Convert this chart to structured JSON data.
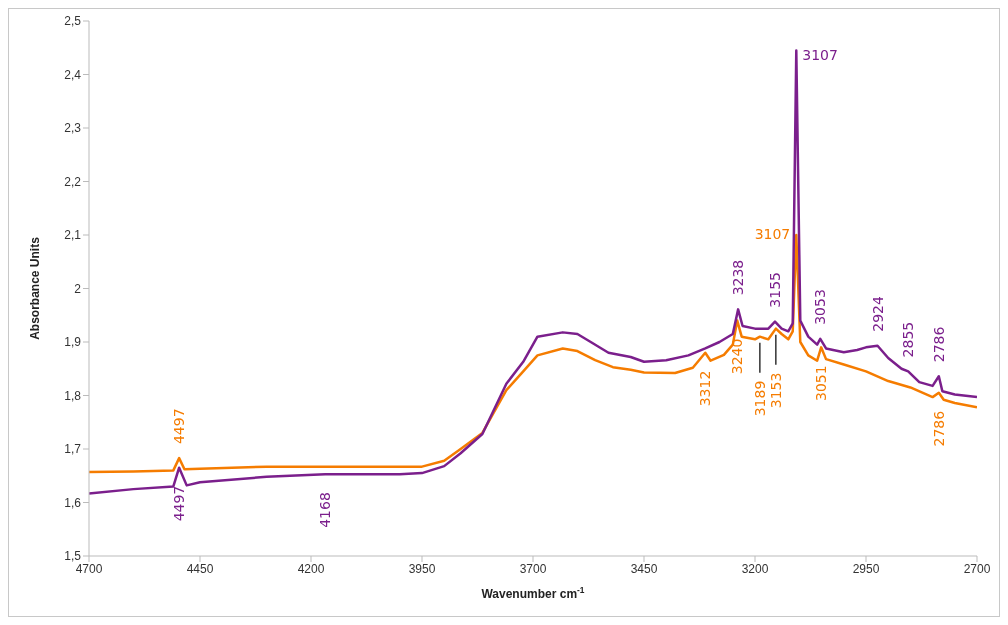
{
  "chart_data": {
    "type": "line",
    "xlabel": "Wavenumber cm$^{-1}$",
    "ylabel": "Absorbance Units",
    "xlim": [
      4700,
      2700
    ],
    "xticks": [
      4700,
      4450,
      4200,
      3950,
      3700,
      3450,
      3200,
      2950,
      2700
    ],
    "ylim": [
      1.5,
      2.5
    ],
    "yticks": [
      {
        "value": 1.5,
        "label": "1,5"
      },
      {
        "value": 1.6,
        "label": "1,6"
      },
      {
        "value": 1.7,
        "label": "1,7"
      },
      {
        "value": 1.8,
        "label": "1,8"
      },
      {
        "value": 1.9,
        "label": "1,9"
      },
      2,
      {
        "value": 2.1,
        "label": "2,1"
      },
      {
        "value": 2.2,
        "label": "2,2"
      },
      {
        "value": 2.3,
        "label": "2,3"
      },
      {
        "value": 2.4,
        "label": "2,4"
      },
      {
        "value": 2.5,
        "label": "2,5"
      }
    ],
    "grid": false,
    "marker": "none",
    "line_style": "solid",
    "series": [
      {
        "color": "#f57c00",
        "x": [
          4700,
          4600,
          4510,
          4497,
          4485,
          4450,
          4300,
          4000,
          3950,
          3900,
          3863,
          3814,
          3760,
          3722,
          3690,
          3633,
          3600,
          3560,
          3520,
          3480,
          3450,
          3380,
          3340,
          3312,
          3300,
          3270,
          3250,
          3240,
          3230,
          3200,
          3189,
          3170,
          3153,
          3140,
          3125,
          3115,
          3107,
          3098,
          3080,
          3060,
          3051,
          3040,
          3000,
          2950,
          2900,
          2850,
          2800,
          2786,
          2775,
          2750,
          2700
        ],
        "values": [
          1.657,
          1.658,
          1.66,
          1.683,
          1.662,
          1.663,
          1.667,
          1.667,
          1.667,
          1.678,
          1.7,
          1.73,
          1.81,
          1.845,
          1.875,
          1.888,
          1.883,
          1.866,
          1.853,
          1.848,
          1.843,
          1.842,
          1.852,
          1.88,
          1.865,
          1.876,
          1.895,
          1.94,
          1.91,
          1.905,
          1.91,
          1.905,
          1.925,
          1.915,
          1.905,
          1.92,
          2.1,
          1.9,
          1.875,
          1.865,
          1.89,
          1.868,
          1.858,
          1.845,
          1.827,
          1.815,
          1.797,
          1.805,
          1.792,
          1.786,
          1.778
        ]
      },
      {
        "color": "#7b1f8c",
        "x": [
          4700,
          4600,
          4510,
          4497,
          4480,
          4450,
          4300,
          4168,
          4000,
          3950,
          3900,
          3863,
          3814,
          3760,
          3722,
          3690,
          3633,
          3600,
          3570,
          3530,
          3480,
          3450,
          3400,
          3350,
          3312,
          3280,
          3250,
          3238,
          3228,
          3200,
          3170,
          3155,
          3140,
          3125,
          3115,
          3107,
          3098,
          3080,
          3060,
          3053,
          3040,
          3000,
          2970,
          2950,
          2924,
          2900,
          2870,
          2855,
          2830,
          2800,
          2786,
          2778,
          2750,
          2700
        ],
        "values": [
          1.617,
          1.625,
          1.63,
          1.665,
          1.632,
          1.638,
          1.648,
          1.653,
          1.653,
          1.655,
          1.668,
          1.692,
          1.728,
          1.822,
          1.863,
          1.91,
          1.918,
          1.915,
          1.9,
          1.88,
          1.872,
          1.863,
          1.866,
          1.875,
          1.888,
          1.9,
          1.915,
          1.961,
          1.93,
          1.925,
          1.925,
          1.938,
          1.925,
          1.92,
          1.935,
          2.445,
          1.94,
          1.91,
          1.895,
          1.906,
          1.888,
          1.881,
          1.885,
          1.89,
          1.893,
          1.87,
          1.85,
          1.845,
          1.825,
          1.818,
          1.836,
          1.808,
          1.802,
          1.797
        ]
      }
    ],
    "annotations": [
      {
        "text": "4497",
        "x": 4497,
        "y": 1.683
      },
      {
        "text": "4497",
        "x": 4497,
        "y": 1.665
      },
      {
        "text": "4168",
        "x": 4168,
        "y": 1.653
      },
      {
        "text": "3312",
        "x": 3312,
        "y": 1.88
      },
      {
        "text": "3240",
        "x": 3240,
        "y": 1.94
      },
      {
        "text": "3238",
        "x": 3238,
        "y": 1.961
      },
      {
        "text": "3189",
        "x": 3189,
        "y": 1.91
      },
      {
        "text": "3153",
        "x": 3153,
        "y": 1.925
      },
      {
        "text": "3155",
        "x": 3155,
        "y": 1.938
      },
      {
        "text": "3107",
        "x": 3107,
        "y": 2.1
      },
      {
        "text": "3107",
        "x": 3107,
        "y": 2.445
      },
      {
        "text": "3051",
        "x": 3051,
        "y": 1.89
      },
      {
        "text": "3053",
        "x": 3053,
        "y": 1.906
      },
      {
        "text": "2924",
        "x": 2924,
        "y": 1.893
      },
      {
        "text": "2855",
        "x": 2855,
        "y": 1.845
      },
      {
        "text": "2786",
        "x": 2786,
        "y": 1.836
      },
      {
        "text": "2786",
        "x": 2786,
        "y": 1.805
      }
    ]
  }
}
